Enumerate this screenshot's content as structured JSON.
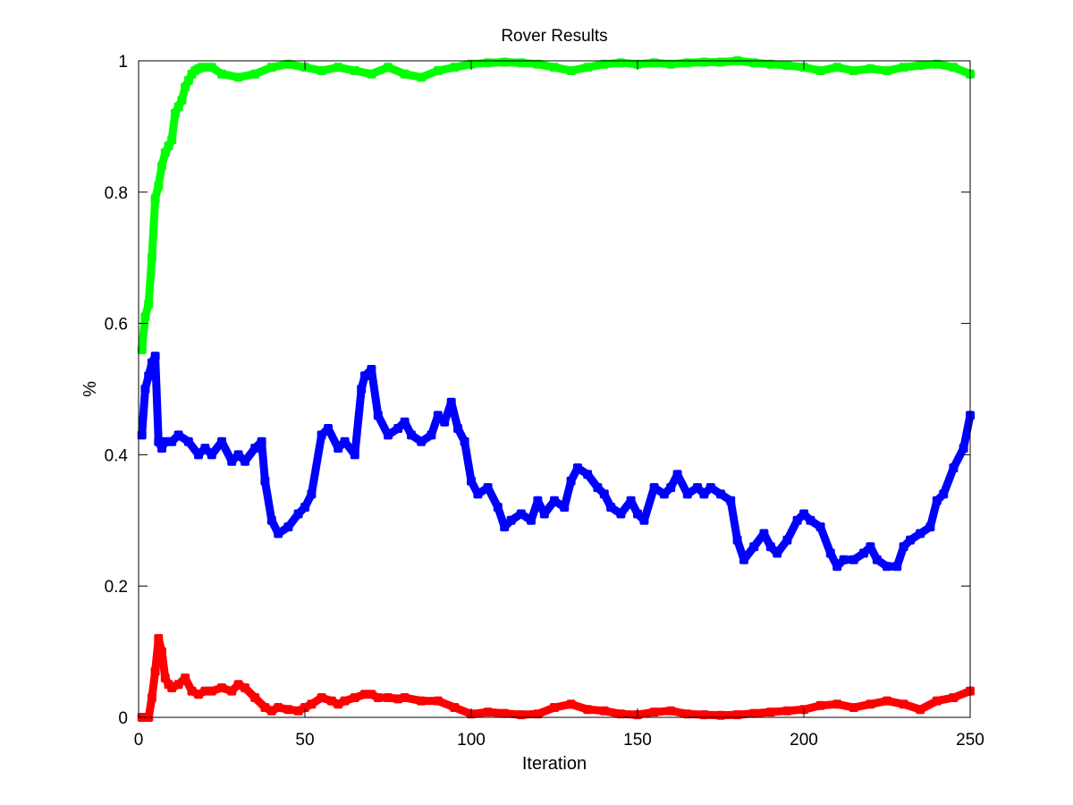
{
  "chart_data": {
    "type": "line",
    "title": "Rover Results",
    "xlabel": "Iteration",
    "ylabel": "%",
    "xlim": [
      0,
      250
    ],
    "ylim": [
      0,
      1
    ],
    "xticks": [
      "0",
      "50",
      "100",
      "150",
      "200",
      "250"
    ],
    "yticks": [
      "0",
      "0.2",
      "0.4",
      "0.6",
      "0.8",
      "1"
    ],
    "grid": false,
    "legend": "none",
    "series": [
      {
        "color": "#00ff00",
        "x": [
          1,
          2,
          3,
          4,
          5,
          6,
          7,
          8,
          9,
          10,
          11,
          12,
          13,
          14,
          15,
          16,
          17,
          18,
          19,
          20,
          22,
          25,
          30,
          35,
          40,
          45,
          50,
          55,
          60,
          65,
          70,
          75,
          80,
          85,
          90,
          95,
          100,
          105,
          110,
          115,
          120,
          125,
          130,
          135,
          140,
          145,
          150,
          155,
          160,
          165,
          170,
          175,
          180,
          185,
          190,
          195,
          200,
          205,
          210,
          215,
          220,
          225,
          230,
          235,
          240,
          245,
          250
        ],
        "y": [
          0.56,
          0.61,
          0.63,
          0.7,
          0.79,
          0.81,
          0.84,
          0.86,
          0.87,
          0.88,
          0.92,
          0.93,
          0.94,
          0.96,
          0.97,
          0.98,
          0.985,
          0.988,
          0.99,
          0.99,
          0.99,
          0.98,
          0.975,
          0.98,
          0.99,
          0.995,
          0.99,
          0.985,
          0.99,
          0.985,
          0.98,
          0.99,
          0.98,
          0.975,
          0.985,
          0.99,
          0.995,
          0.997,
          0.998,
          0.997,
          0.995,
          0.99,
          0.985,
          0.99,
          0.995,
          0.997,
          0.995,
          0.997,
          0.995,
          0.997,
          0.998,
          0.998,
          1.0,
          0.997,
          0.995,
          0.993,
          0.99,
          0.985,
          0.99,
          0.985,
          0.988,
          0.985,
          0.99,
          0.993,
          0.995,
          0.99,
          0.98
        ]
      },
      {
        "color": "#0000ff",
        "x": [
          1,
          2,
          3,
          4,
          5,
          6,
          7,
          8,
          10,
          12,
          15,
          18,
          20,
          22,
          25,
          28,
          30,
          32,
          35,
          37,
          38,
          40,
          42,
          45,
          48,
          50,
          52,
          55,
          57,
          60,
          62,
          65,
          67,
          68,
          70,
          72,
          75,
          78,
          80,
          82,
          85,
          88,
          90,
          92,
          94,
          96,
          98,
          100,
          102,
          105,
          108,
          110,
          112,
          115,
          118,
          120,
          122,
          125,
          128,
          130,
          132,
          135,
          138,
          140,
          142,
          145,
          148,
          150,
          152,
          155,
          158,
          160,
          162,
          165,
          168,
          170,
          172,
          175,
          178,
          180,
          182,
          185,
          188,
          190,
          192,
          195,
          198,
          200,
          202,
          205,
          208,
          210,
          212,
          215,
          218,
          220,
          222,
          225,
          228,
          230,
          232,
          235,
          238,
          240,
          242,
          245,
          248,
          250
        ],
        "y": [
          0.43,
          0.5,
          0.52,
          0.54,
          0.55,
          0.42,
          0.41,
          0.42,
          0.42,
          0.43,
          0.42,
          0.4,
          0.41,
          0.4,
          0.42,
          0.39,
          0.4,
          0.39,
          0.41,
          0.42,
          0.36,
          0.3,
          0.28,
          0.29,
          0.31,
          0.32,
          0.34,
          0.43,
          0.44,
          0.41,
          0.42,
          0.4,
          0.5,
          0.52,
          0.53,
          0.46,
          0.43,
          0.44,
          0.45,
          0.43,
          0.42,
          0.43,
          0.46,
          0.45,
          0.48,
          0.44,
          0.42,
          0.36,
          0.34,
          0.35,
          0.32,
          0.29,
          0.3,
          0.31,
          0.3,
          0.33,
          0.31,
          0.33,
          0.32,
          0.36,
          0.38,
          0.37,
          0.35,
          0.34,
          0.32,
          0.31,
          0.33,
          0.31,
          0.3,
          0.35,
          0.34,
          0.35,
          0.37,
          0.34,
          0.35,
          0.34,
          0.35,
          0.34,
          0.33,
          0.27,
          0.24,
          0.26,
          0.28,
          0.26,
          0.25,
          0.27,
          0.3,
          0.31,
          0.3,
          0.29,
          0.25,
          0.23,
          0.24,
          0.24,
          0.25,
          0.26,
          0.24,
          0.23,
          0.23,
          0.26,
          0.27,
          0.28,
          0.29,
          0.33,
          0.34,
          0.38,
          0.41,
          0.46
        ]
      },
      {
        "color": "#ff0000",
        "x": [
          1,
          2,
          3,
          4,
          5,
          6,
          7,
          8,
          9,
          10,
          12,
          14,
          16,
          18,
          20,
          22,
          25,
          28,
          30,
          32,
          35,
          38,
          40,
          42,
          45,
          48,
          50,
          52,
          55,
          58,
          60,
          62,
          65,
          68,
          70,
          72,
          75,
          78,
          80,
          85,
          90,
          95,
          100,
          105,
          110,
          115,
          120,
          125,
          130,
          135,
          140,
          145,
          150,
          155,
          160,
          165,
          170,
          175,
          180,
          185,
          190,
          195,
          200,
          205,
          210,
          215,
          220,
          225,
          230,
          235,
          240,
          245,
          250
        ],
        "y": [
          0.0,
          0.0,
          0.0,
          0.03,
          0.07,
          0.12,
          0.1,
          0.06,
          0.05,
          0.045,
          0.05,
          0.06,
          0.04,
          0.035,
          0.04,
          0.04,
          0.045,
          0.04,
          0.05,
          0.045,
          0.03,
          0.015,
          0.01,
          0.015,
          0.012,
          0.01,
          0.015,
          0.02,
          0.03,
          0.025,
          0.02,
          0.025,
          0.03,
          0.035,
          0.035,
          0.03,
          0.03,
          0.028,
          0.03,
          0.025,
          0.025,
          0.015,
          0.005,
          0.008,
          0.006,
          0.004,
          0.005,
          0.015,
          0.02,
          0.012,
          0.01,
          0.005,
          0.004,
          0.008,
          0.01,
          0.005,
          0.004,
          0.003,
          0.004,
          0.006,
          0.008,
          0.01,
          0.012,
          0.018,
          0.02,
          0.015,
          0.02,
          0.025,
          0.02,
          0.012,
          0.025,
          0.03,
          0.04
        ]
      }
    ]
  }
}
